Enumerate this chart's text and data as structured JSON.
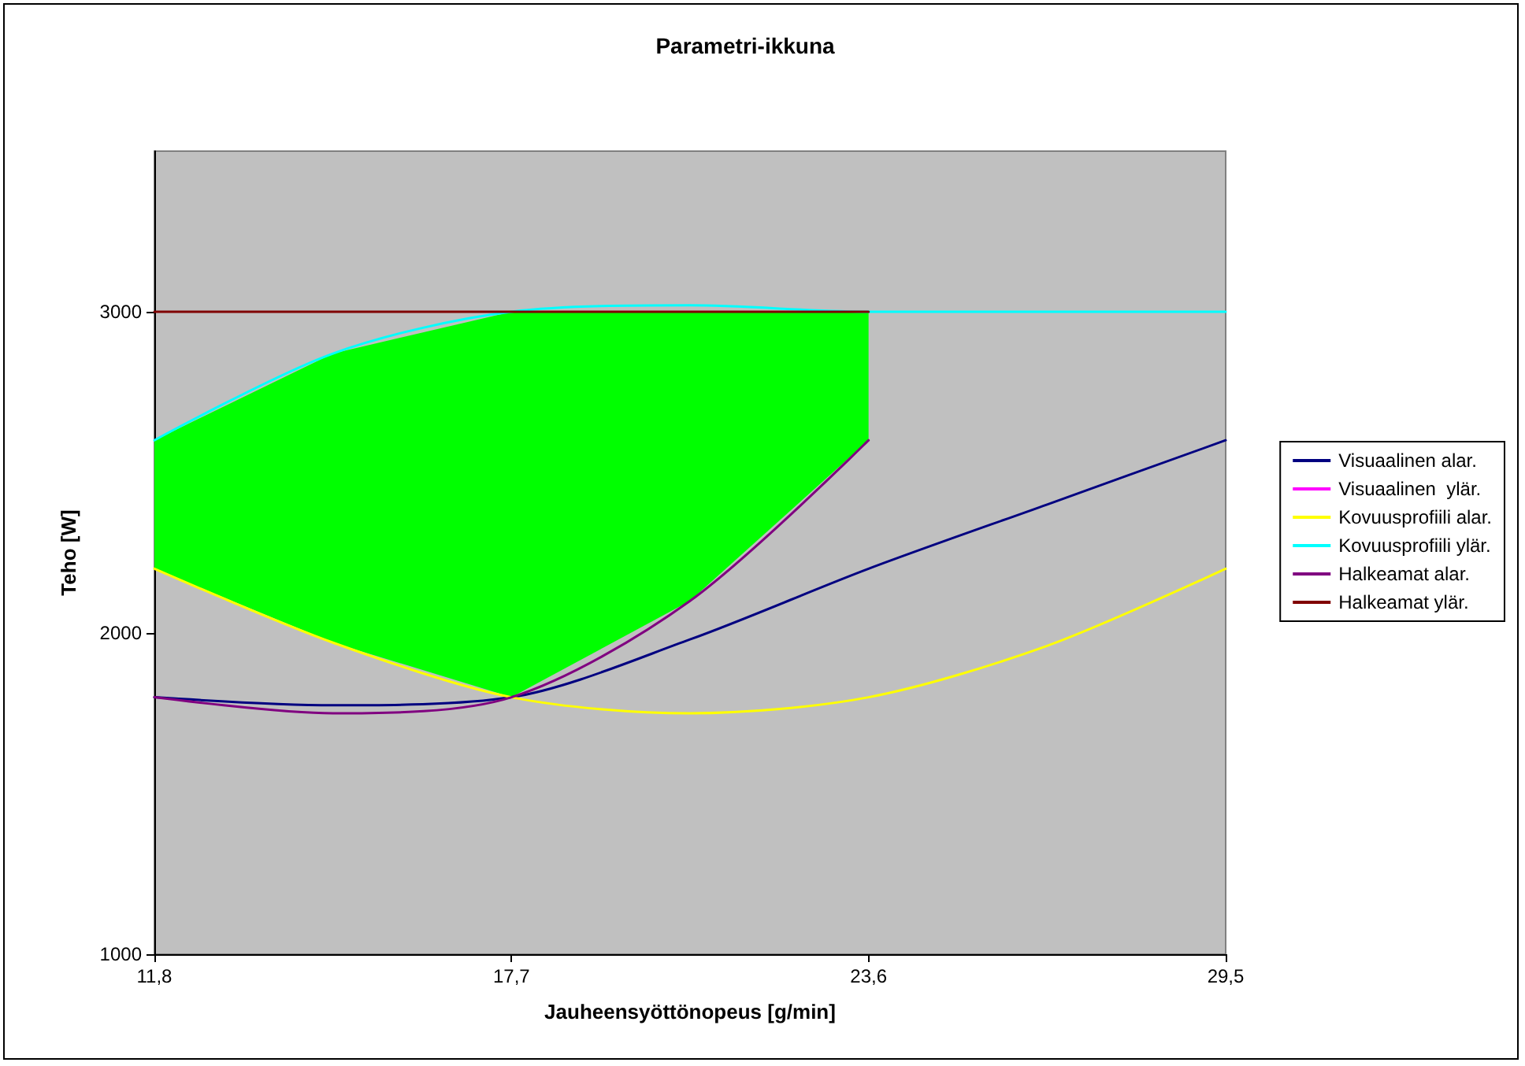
{
  "chart_data": {
    "type": "line",
    "title": "Parametri-ikkuna",
    "xlabel": "Jauheensyöttönopeus [g/min]",
    "ylabel": "Teho [W]",
    "x": [
      11.8,
      14.75,
      17.7,
      20.65,
      23.6,
      26.55,
      29.5
    ],
    "series": [
      {
        "type": "line",
        "color": "#00ff00",
        "x": [
          11.8,
          14.75,
          17.7,
          20.65,
          23.6
        ],
        "values": [
          null,
          null,
          null,
          null,
          null
        ],
        "upper": [
          2600,
          2870,
          3000,
          3000,
          3000
        ],
        "lower": [
          2200,
          1970,
          1800,
          2100,
          2600
        ]
      },
      {
        "name": "Visuaalinen alar.",
        "color": "#000080",
        "values": [
          1800,
          1775,
          1800,
          1980,
          2200,
          2400,
          2600
        ]
      },
      {
        "name": "Visuaalinen  ylär.",
        "color": "#ff00ff",
        "values": [
          null,
          null,
          null,
          null,
          null,
          null,
          null
        ]
      },
      {
        "name": "Kovuusprofiili alar.",
        "color": "#ffff00",
        "values": [
          2200,
          1970,
          1800,
          1750,
          1800,
          1960,
          2200
        ]
      },
      {
        "name": "Kovuusprofiili ylär.",
        "color": "#00ffff",
        "values": [
          2600,
          2870,
          3000,
          3020,
          3000,
          3000,
          3000
        ]
      },
      {
        "name": "Halkeamat alar.",
        "color": "#800080",
        "x": [
          11.8,
          14.75,
          17.7,
          20.65,
          23.6
        ],
        "values": [
          1800,
          1750,
          1800,
          2100,
          2600
        ]
      },
      {
        "name": "Halkeamat ylär.",
        "color": "#800000",
        "x": [
          11.8,
          23.6
        ],
        "values": [
          3000,
          3000
        ]
      }
    ],
    "xlim": [
      11.8,
      29.5
    ],
    "xticks": [
      {
        "value": 11.8,
        "label": "11,8"
      },
      {
        "value": 17.7,
        "label": "17,7"
      },
      {
        "value": 23.6,
        "label": "23,6"
      },
      {
        "value": 29.5,
        "label": "29,5"
      }
    ],
    "ylim": [
      1000,
      3500
    ],
    "yticks": [
      1000,
      2000,
      3000
    ],
    "grid": false,
    "legend": "right",
    "marker": "none",
    "line_style": "solid"
  }
}
